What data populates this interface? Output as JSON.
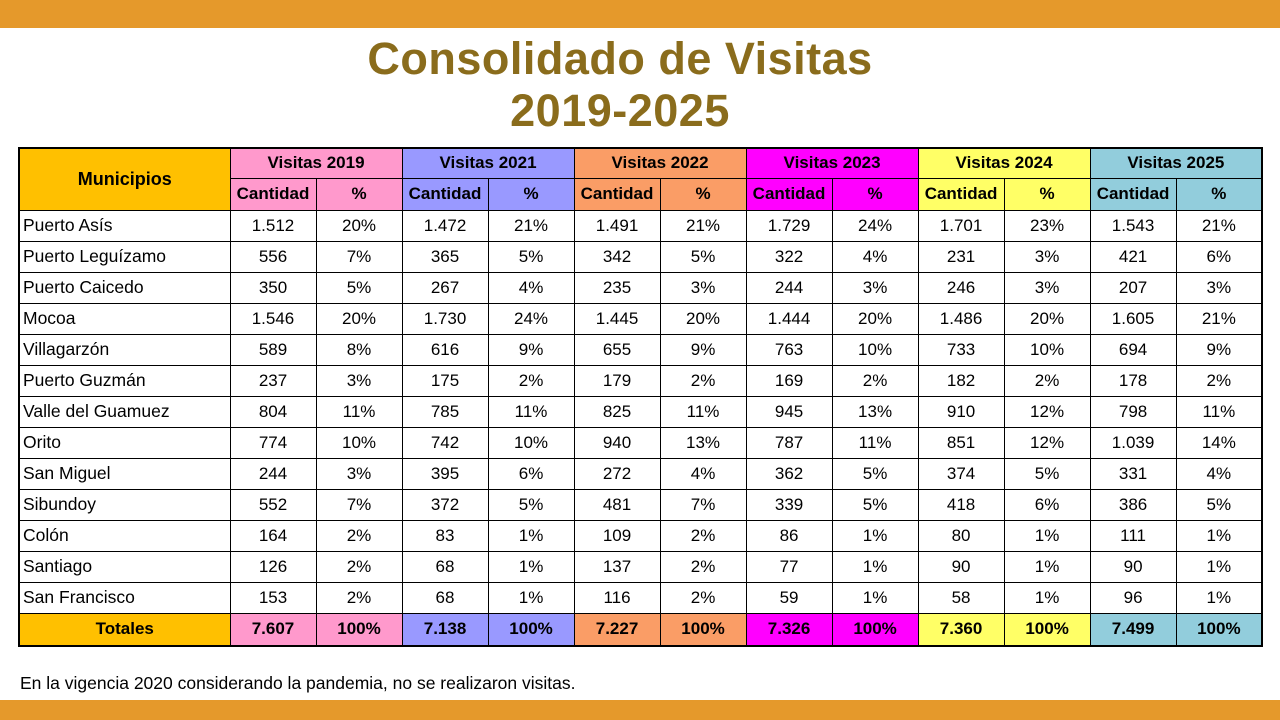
{
  "page": {
    "title_line1": "Consolidado de Visitas",
    "title_line2": "2019-2025",
    "footnote": "En la vigencia 2020 considerando la pandemia, no se realizaron visitas."
  },
  "colors": {
    "accent_bar": "#E5992B",
    "title_text": "#8A6C1C",
    "header_gold": "#FFC000",
    "year_2019": "#FF99CC",
    "year_2021": "#9999FF",
    "year_2022": "#FA9D66",
    "year_2023": "#FF00FF",
    "year_2024": "#FFFF66",
    "year_2025": "#92CDDC"
  },
  "table": {
    "municipios_header": "Municipios",
    "totals_label": "Totales",
    "subheaders": [
      "Cantidad",
      "%"
    ],
    "year_groups": [
      {
        "label": "Visitas 2019",
        "color_key": "year_2019"
      },
      {
        "label": "Visitas 2021",
        "color_key": "year_2021"
      },
      {
        "label": "Visitas 2022",
        "color_key": "year_2022"
      },
      {
        "label": "Visitas 2023",
        "color_key": "year_2023"
      },
      {
        "label": "Visitas 2024",
        "color_key": "year_2024"
      },
      {
        "label": "Visitas 2025",
        "color_key": "year_2025"
      }
    ],
    "rows": [
      {
        "name": "Puerto Asís",
        "values": [
          "1.512",
          "20%",
          "1.472",
          "21%",
          "1.491",
          "21%",
          "1.729",
          "24%",
          "1.701",
          "23%",
          "1.543",
          "21%"
        ]
      },
      {
        "name": "Puerto Leguízamo",
        "values": [
          "556",
          "7%",
          "365",
          "5%",
          "342",
          "5%",
          "322",
          "4%",
          "231",
          "3%",
          "421",
          "6%"
        ]
      },
      {
        "name": "Puerto Caicedo",
        "values": [
          "350",
          "5%",
          "267",
          "4%",
          "235",
          "3%",
          "244",
          "3%",
          "246",
          "3%",
          "207",
          "3%"
        ]
      },
      {
        "name": "Mocoa",
        "values": [
          "1.546",
          "20%",
          "1.730",
          "24%",
          "1.445",
          "20%",
          "1.444",
          "20%",
          "1.486",
          "20%",
          "1.605",
          "21%"
        ]
      },
      {
        "name": "Villagarzón",
        "values": [
          "589",
          "8%",
          "616",
          "9%",
          "655",
          "9%",
          "763",
          "10%",
          "733",
          "10%",
          "694",
          "9%"
        ]
      },
      {
        "name": "Puerto Guzmán",
        "values": [
          "237",
          "3%",
          "175",
          "2%",
          "179",
          "2%",
          "169",
          "2%",
          "182",
          "2%",
          "178",
          "2%"
        ]
      },
      {
        "name": "Valle del Guamuez",
        "values": [
          "804",
          "11%",
          "785",
          "11%",
          "825",
          "11%",
          "945",
          "13%",
          "910",
          "12%",
          "798",
          "11%"
        ]
      },
      {
        "name": "Orito",
        "values": [
          "774",
          "10%",
          "742",
          "10%",
          "940",
          "13%",
          "787",
          "11%",
          "851",
          "12%",
          "1.039",
          "14%"
        ]
      },
      {
        "name": "San Miguel",
        "values": [
          "244",
          "3%",
          "395",
          "6%",
          "272",
          "4%",
          "362",
          "5%",
          "374",
          "5%",
          "331",
          "4%"
        ]
      },
      {
        "name": "Sibundoy",
        "values": [
          "552",
          "7%",
          "372",
          "5%",
          "481",
          "7%",
          "339",
          "5%",
          "418",
          "6%",
          "386",
          "5%"
        ]
      },
      {
        "name": "Colón",
        "values": [
          "164",
          "2%",
          "83",
          "1%",
          "109",
          "2%",
          "86",
          "1%",
          "80",
          "1%",
          "111",
          "1%"
        ]
      },
      {
        "name": "Santiago",
        "values": [
          "126",
          "2%",
          "68",
          "1%",
          "137",
          "2%",
          "77",
          "1%",
          "90",
          "1%",
          "90",
          "1%"
        ]
      },
      {
        "name": "San Francisco",
        "values": [
          "153",
          "2%",
          "68",
          "1%",
          "116",
          "2%",
          "59",
          "1%",
          "58",
          "1%",
          "96",
          "1%"
        ]
      }
    ],
    "totals": [
      "7.607",
      "100%",
      "7.138",
      "100%",
      "7.227",
      "100%",
      "7.326",
      "100%",
      "7.360",
      "100%",
      "7.499",
      "100%"
    ]
  },
  "chart_data": {
    "type": "table",
    "title": "Consolidado de Visitas 2019-2025",
    "columns": [
      "Municipios",
      "2019 Cantidad",
      "2019 %",
      "2021 Cantidad",
      "2021 %",
      "2022 Cantidad",
      "2022 %",
      "2023 Cantidad",
      "2023 %",
      "2024 Cantidad",
      "2024 %",
      "2025 Cantidad",
      "2025 %"
    ],
    "rows": [
      [
        "Puerto Asís",
        1512,
        "20%",
        1472,
        "21%",
        1491,
        "21%",
        1729,
        "24%",
        1701,
        "23%",
        1543,
        "21%"
      ],
      [
        "Puerto Leguízamo",
        556,
        "7%",
        365,
        "5%",
        342,
        "5%",
        322,
        "4%",
        231,
        "3%",
        421,
        "6%"
      ],
      [
        "Puerto Caicedo",
        350,
        "5%",
        267,
        "4%",
        235,
        "3%",
        244,
        "3%",
        246,
        "3%",
        207,
        "3%"
      ],
      [
        "Mocoa",
        1546,
        "20%",
        1730,
        "24%",
        1445,
        "20%",
        1444,
        "20%",
        1486,
        "20%",
        1605,
        "21%"
      ],
      [
        "Villagarzón",
        589,
        "8%",
        616,
        "9%",
        655,
        "9%",
        763,
        "10%",
        733,
        "10%",
        694,
        "9%"
      ],
      [
        "Puerto Guzmán",
        237,
        "3%",
        175,
        "2%",
        179,
        "2%",
        169,
        "2%",
        182,
        "2%",
        178,
        "2%"
      ],
      [
        "Valle del Guamuez",
        804,
        "11%",
        785,
        "11%",
        825,
        "11%",
        945,
        "13%",
        910,
        "12%",
        798,
        "11%"
      ],
      [
        "Orito",
        774,
        "10%",
        742,
        "10%",
        940,
        "13%",
        787,
        "11%",
        851,
        "12%",
        1039,
        "14%"
      ],
      [
        "San Miguel",
        244,
        "3%",
        395,
        "6%",
        272,
        "4%",
        362,
        "5%",
        374,
        "5%",
        331,
        "4%"
      ],
      [
        "Sibundoy",
        552,
        "7%",
        372,
        "5%",
        481,
        "7%",
        339,
        "5%",
        418,
        "6%",
        386,
        "5%"
      ],
      [
        "Colón",
        164,
        "2%",
        83,
        "1%",
        109,
        "2%",
        86,
        "1%",
        80,
        "1%",
        111,
        "1%"
      ],
      [
        "Santiago",
        126,
        "2%",
        68,
        "1%",
        137,
        "2%",
        77,
        "1%",
        90,
        "1%",
        90,
        "1%"
      ],
      [
        "San Francisco",
        153,
        "2%",
        68,
        "1%",
        116,
        "2%",
        59,
        "1%",
        58,
        "1%",
        96,
        "1%"
      ],
      [
        "Totales",
        7607,
        "100%",
        7138,
        "100%",
        7227,
        "100%",
        7326,
        "100%",
        7360,
        "100%",
        7499,
        "100%"
      ]
    ]
  }
}
